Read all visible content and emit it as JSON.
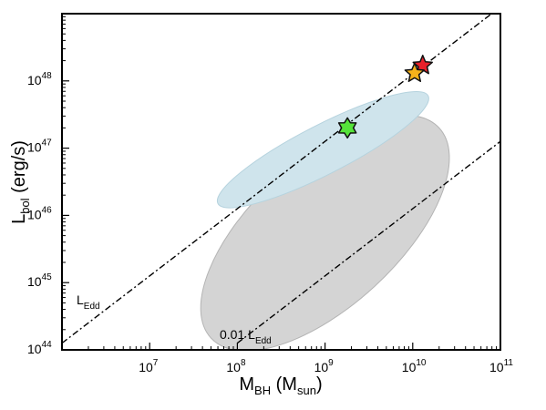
{
  "chart_data": {
    "type": "scatter",
    "title": "",
    "x_scale": "log",
    "y_scale": "log",
    "xlim": [
      1000000.0,
      100000000000.0
    ],
    "ylim": [
      1e+44,
      1e+49
    ],
    "x_ticks": [
      {
        "value": 10000000.0,
        "base": "10",
        "exp": "7"
      },
      {
        "value": 100000000.0,
        "base": "10",
        "exp": "8"
      },
      {
        "value": 1000000000.0,
        "base": "10",
        "exp": "9"
      },
      {
        "value": 10000000000.0,
        "base": "10",
        "exp": "10"
      },
      {
        "value": 100000000000.0,
        "base": "10",
        "exp": "11"
      }
    ],
    "y_ticks": [
      {
        "value": 1e+44,
        "base": "10",
        "exp": "44"
      },
      {
        "value": 1e+45,
        "base": "10",
        "exp": "45"
      },
      {
        "value": 1e+46,
        "base": "10",
        "exp": "46"
      },
      {
        "value": 1e+47,
        "base": "10",
        "exp": "47"
      },
      {
        "value": 1e+48,
        "base": "10",
        "exp": "48"
      }
    ],
    "xlabel": {
      "main": "M",
      "sub": "BH",
      "unit_open": " (M",
      "unit_sub": "sun",
      "unit_close": ")"
    },
    "ylabel": {
      "main": "L",
      "sub": "bol",
      "unit": " (erg/s)"
    },
    "grid": false,
    "lines": [
      {
        "label_main": "L",
        "label_sub": "Edd",
        "fraction": 1.0,
        "x_range": [
          1000000.0,
          100000000000.0
        ],
        "style": "dash-dot",
        "color": "#000000"
      },
      {
        "label_main": "0.01 L",
        "label_sub": "Edd",
        "fraction": 0.01,
        "x_range": [
          100000000.0,
          100000000000.0
        ],
        "style": "dash-dot",
        "color": "#000000"
      }
    ],
    "regions": [
      {
        "shape": "ellipse",
        "center": {
          "x": 1000000000.0,
          "y": 4.5e+45
        },
        "extent": {
          "x_from": 50000000.0,
          "x_to": 20000000000.0,
          "y_from": 1.5e+44,
          "y_to": 2e+47
        },
        "color": "#d4d4d4",
        "stroke": "#b4b4b4"
      },
      {
        "shape": "ellipse",
        "center": {
          "x": 1000000000.0,
          "y": 1.2e+47
        },
        "extent": {
          "x_from": 60000000.0,
          "x_to": 15000000000.0,
          "y_from": 1.5e+46,
          "y_to": 6e+47
        },
        "color": "#cfe4ec",
        "stroke": "#b6d3de"
      }
    ],
    "points": [
      {
        "x": 13000000000.0,
        "y": 1.7e+48,
        "marker": "star",
        "color": "#e8202a"
      },
      {
        "x": 10500000000.0,
        "y": 1.3e+48,
        "marker": "star",
        "color": "#f6b21a"
      },
      {
        "x": 1800000000.0,
        "y": 2e+47,
        "marker": "hexagram",
        "color": "#55e33a"
      }
    ]
  }
}
